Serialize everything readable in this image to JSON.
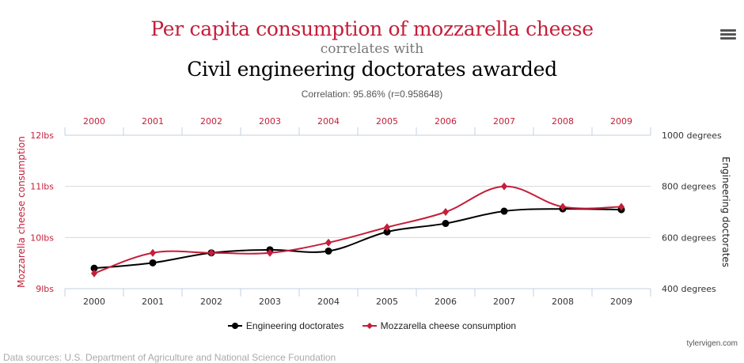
{
  "header": {
    "title_variable_1": "Per capita consumption of mozzarella cheese",
    "connector": "correlates with",
    "title_variable_2": "Civil engineering doctorates awarded",
    "correlation": "Correlation: 95.86% (r=0.958648)"
  },
  "menu": {
    "icon": "hamburger-menu-icon"
  },
  "footer": {
    "credit": "tylervigen.com",
    "sources": "Data sources: U.S. Department of Agriculture and National Science Foundation"
  },
  "colors": {
    "mozzarella": "#c41e3a",
    "doctorates": "#000000",
    "grid": "#d8d8d8",
    "axis": "#c0d0e0",
    "left_axis_text": "#c41e3a",
    "right_axis_text": "#333333"
  },
  "chart_data": {
    "type": "line",
    "title": "Per capita consumption of mozzarella cheese correlates with Civil engineering doctorates awarded",
    "x": [
      "2000",
      "2001",
      "2002",
      "2003",
      "2004",
      "2005",
      "2006",
      "2007",
      "2008",
      "2009"
    ],
    "x_top_labels": [
      "2000",
      "2001",
      "2002",
      "2003",
      "2004",
      "2005",
      "2006",
      "2007",
      "2008",
      "2009"
    ],
    "left_axis": {
      "label": "Mozzarella cheese consumption",
      "range": [
        9,
        12
      ],
      "ticks": [
        12,
        11,
        10,
        9
      ],
      "tick_labels": [
        "12lbs",
        "11lbs",
        "10lbs",
        "9lbs"
      ]
    },
    "right_axis": {
      "label": "Engineering doctorates",
      "range": [
        400,
        1000
      ],
      "ticks": [
        1000,
        800,
        600,
        400
      ],
      "tick_labels": [
        "1000 degrees",
        "800 degrees",
        "600 degrees",
        "400 degrees"
      ]
    },
    "series": [
      {
        "name": "Engineering doctorates",
        "axis": "right",
        "marker": "circle",
        "color": "#000000",
        "values": [
          480,
          501,
          540,
          552,
          547,
          622,
          655,
          703,
          712,
          709
        ]
      },
      {
        "name": "Mozzarella cheese consumption",
        "axis": "left",
        "marker": "diamond",
        "color": "#c41e3a",
        "values": [
          9.3,
          9.7,
          9.7,
          9.7,
          9.9,
          10.2,
          10.5,
          11.0,
          10.6,
          10.6
        ]
      }
    ],
    "grid": true,
    "legend": "bottom-center"
  }
}
